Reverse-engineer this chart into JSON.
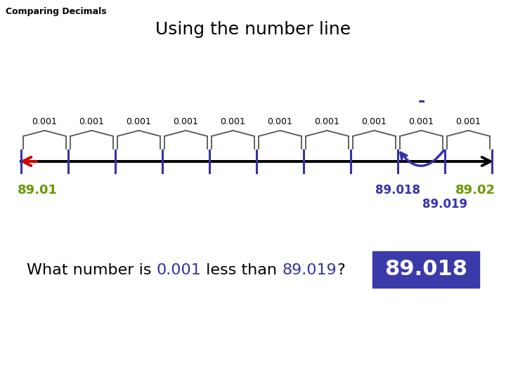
{
  "title": "Using the number line",
  "subtitle": "Comparing Decimals",
  "background_color": "#ffffff",
  "num_ticks": 11,
  "label_start": "89.01",
  "label_end": "89.02",
  "label_89018": "89.018",
  "label_89019": "89.019",
  "arc_label": "-",
  "tick_color": "#3333aa",
  "number_line_color": "#000000",
  "arrow_color": "#cc0000",
  "label_color_green": "#669900",
  "label_color_blue": "#3333aa",
  "interval_label": "0.001",
  "question_text_black": "What number is ",
  "question_text_blue1": "0.001",
  "question_text_black2": " less than ",
  "question_text_blue2": "89.019",
  "question_text_black3": "?",
  "answer_text": "89.018",
  "answer_box_color": "#3a3aaa",
  "answer_text_color": "#ffffff"
}
